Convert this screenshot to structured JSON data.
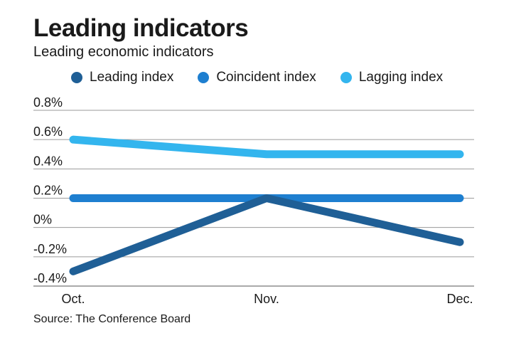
{
  "chart_data": {
    "type": "line",
    "title": "Leading indicators",
    "subtitle": "Leading economic indicators",
    "categories": [
      "Oct.",
      "Nov.",
      "Dec."
    ],
    "series": [
      {
        "name": "Leading index",
        "values": [
          -0.3,
          0.2,
          -0.1
        ],
        "color": "#1f5f96"
      },
      {
        "name": "Coincident index",
        "values": [
          0.2,
          0.2,
          0.2
        ],
        "color": "#1e7fd0"
      },
      {
        "name": "Lagging index",
        "values": [
          0.6,
          0.5,
          0.5
        ],
        "color": "#33b5ee"
      }
    ],
    "yticks": [
      "0.8%",
      "0.6%",
      "0.4%",
      "0.2%",
      "0%",
      "-0.2%",
      "-0.4%"
    ],
    "ylim": [
      -0.4,
      0.8
    ],
    "xlabel": "",
    "ylabel": "",
    "legend_position": "top",
    "source": "Source: The Conference Board"
  }
}
